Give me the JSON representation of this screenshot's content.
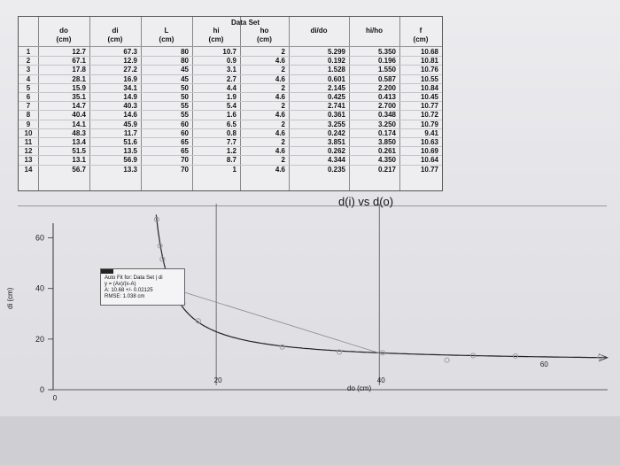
{
  "table": {
    "group_header": "Data Set",
    "columns": [
      {
        "key": "do",
        "name": "do",
        "unit": "(cm)"
      },
      {
        "key": "di",
        "name": "di",
        "unit": "(cm)"
      },
      {
        "key": "L",
        "name": "L",
        "unit": "(cm)"
      },
      {
        "key": "hi",
        "name": "hi",
        "unit": "(cm)"
      },
      {
        "key": "ho",
        "name": "ho",
        "unit": "(cm)"
      },
      {
        "key": "dido",
        "name": "di/do",
        "unit": ""
      },
      {
        "key": "hiho",
        "name": "hi/ho",
        "unit": ""
      },
      {
        "key": "f",
        "name": "f",
        "unit": "(cm)"
      }
    ],
    "rows": [
      {
        "n": "1",
        "do": "12.7",
        "di": "67.3",
        "L": "80",
        "hi": "10.7",
        "ho": "2",
        "dido": "5.299",
        "hiho": "5.350",
        "f": "10.68"
      },
      {
        "n": "2",
        "do": "67.1",
        "di": "12.9",
        "L": "80",
        "hi": "0.9",
        "ho": "4.6",
        "dido": "0.192",
        "hiho": "0.196",
        "f": "10.81"
      },
      {
        "n": "3",
        "do": "17.8",
        "di": "27.2",
        "L": "45",
        "hi": "3.1",
        "ho": "2",
        "dido": "1.528",
        "hiho": "1.550",
        "f": "10.76"
      },
      {
        "n": "4",
        "do": "28.1",
        "di": "16.9",
        "L": "45",
        "hi": "2.7",
        "ho": "4.6",
        "dido": "0.601",
        "hiho": "0.587",
        "f": "10.55"
      },
      {
        "n": "5",
        "do": "15.9",
        "di": "34.1",
        "L": "50",
        "hi": "4.4",
        "ho": "2",
        "dido": "2.145",
        "hiho": "2.200",
        "f": "10.84"
      },
      {
        "n": "6",
        "do": "35.1",
        "di": "14.9",
        "L": "50",
        "hi": "1.9",
        "ho": "4.6",
        "dido": "0.425",
        "hiho": "0.413",
        "f": "10.45"
      },
      {
        "n": "7",
        "do": "14.7",
        "di": "40.3",
        "L": "55",
        "hi": "5.4",
        "ho": "2",
        "dido": "2.741",
        "hiho": "2.700",
        "f": "10.77"
      },
      {
        "n": "8",
        "do": "40.4",
        "di": "14.6",
        "L": "55",
        "hi": "1.6",
        "ho": "4.6",
        "dido": "0.361",
        "hiho": "0.348",
        "f": "10.72"
      },
      {
        "n": "9",
        "do": "14.1",
        "di": "45.9",
        "L": "60",
        "hi": "6.5",
        "ho": "2",
        "dido": "3.255",
        "hiho": "3.250",
        "f": "10.79"
      },
      {
        "n": "10",
        "do": "48.3",
        "di": "11.7",
        "L": "60",
        "hi": "0.8",
        "ho": "4.6",
        "dido": "0.242",
        "hiho": "0.174",
        "f": "9.41"
      },
      {
        "n": "11",
        "do": "13.4",
        "di": "51.6",
        "L": "65",
        "hi": "7.7",
        "ho": "2",
        "dido": "3.851",
        "hiho": "3.850",
        "f": "10.63"
      },
      {
        "n": "12",
        "do": "51.5",
        "di": "13.5",
        "L": "65",
        "hi": "1.2",
        "ho": "4.6",
        "dido": "0.262",
        "hiho": "0.261",
        "f": "10.69"
      },
      {
        "n": "13",
        "do": "13.1",
        "di": "56.9",
        "L": "70",
        "hi": "8.7",
        "ho": "2",
        "dido": "4.344",
        "hiho": "4.350",
        "f": "10.64"
      },
      {
        "n": "14",
        "do": "56.7",
        "di": "13.3",
        "L": "70",
        "hi": "1",
        "ho": "4.6",
        "dido": "0.235",
        "hiho": "0.217",
        "f": "10.77"
      }
    ]
  },
  "fit": {
    "line1": "Auto Fit for: Data Set | di",
    "line2": "y = (Ax)/(x-A)",
    "line3": "A: 10.68 +/- 0.02125",
    "line4": "RMSE: 1.038 cm"
  },
  "chart_data": {
    "type": "scatter",
    "title": "d(i) vs d(o)",
    "xlabel": "do (cm)",
    "ylabel": "di (cm)",
    "xlim": [
      0,
      68
    ],
    "ylim": [
      0,
      70
    ],
    "x_ticks": [
      "0",
      "20",
      "40",
      "60"
    ],
    "y_ticks": [
      "0",
      "20",
      "40",
      "60"
    ],
    "grid": true,
    "series": [
      {
        "x": [
          12.7,
          67.1,
          17.8,
          28.1,
          15.9,
          35.1,
          14.7,
          40.4,
          14.1,
          48.3,
          13.4,
          51.5,
          13.1,
          56.7
        ],
        "y": [
          67.3,
          12.9,
          27.2,
          16.9,
          34.1,
          14.9,
          40.3,
          14.6,
          45.9,
          11.7,
          51.6,
          13.5,
          56.9,
          13.3
        ]
      }
    ],
    "fit_A": 10.68,
    "colors": {
      "points": "#9a9a9a",
      "fit_line": "#222222",
      "connector": "#888888"
    }
  }
}
